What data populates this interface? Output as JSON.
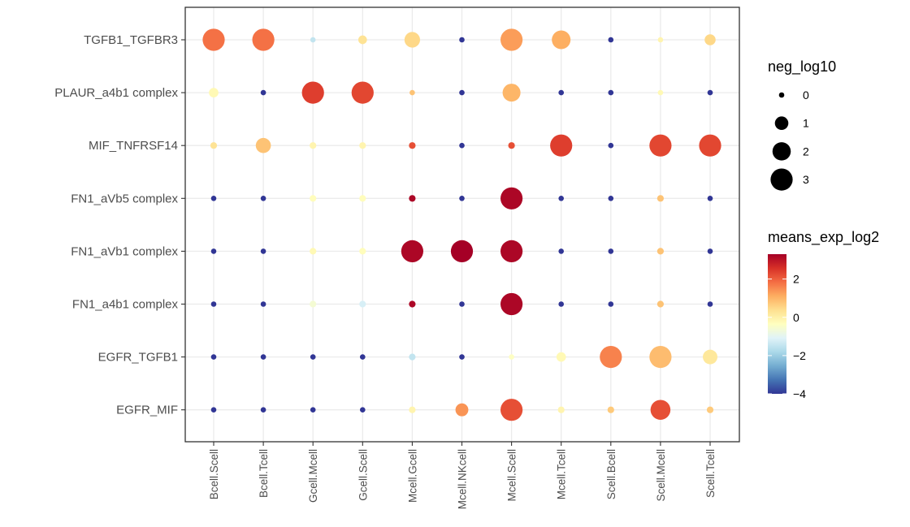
{
  "chart_data": {
    "type": "scatter",
    "title": "",
    "xlabel": "",
    "ylabel": "",
    "x_categories": [
      "Bcell.Scell",
      "Bcell.Tcell",
      "Gcell.Mcell",
      "Gcell.Scell",
      "Mcell.Gcell",
      "Mcell.NKcell",
      "Mcell.Scell",
      "Mcell.Tcell",
      "Scell.Bcell",
      "Scell.Mcell",
      "Scell.Tcell"
    ],
    "y_categories": [
      "TGFB1_TGFBR3",
      "PLAUR_a4b1 complex",
      "MIF_TNFRSF14",
      "FN1_aVb5 complex",
      "FN1_aVb1 complex",
      "FN1_a4b1 complex",
      "EGFR_TGFB1",
      "EGFR_MIF"
    ],
    "size_variable": "neg_log10",
    "color_variable": "means_exp_log2",
    "neg_log10": [
      [
        3,
        3,
        0,
        0.3,
        1.4,
        0,
        3,
        2.1,
        0,
        0,
        0.6
      ],
      [
        0.4,
        0,
        3,
        3,
        0,
        0,
        1.9,
        0,
        0,
        0,
        0
      ],
      [
        0.1,
        1.3,
        0.1,
        0.1,
        0.1,
        0,
        0.1,
        3,
        0,
        3,
        3
      ],
      [
        0,
        0,
        0.1,
        0.1,
        0.1,
        0,
        3,
        0,
        0,
        0.1,
        0
      ],
      [
        0,
        0,
        0.1,
        0.1,
        3,
        3,
        3,
        0,
        0,
        0.1,
        0
      ],
      [
        0,
        0,
        0.1,
        0.1,
        0.1,
        0,
        3,
        0,
        0,
        0.1,
        0
      ],
      [
        0,
        0,
        0,
        0,
        0.1,
        0,
        0,
        0.4,
        3,
        3,
        1.2
      ],
      [
        0,
        0,
        0,
        0,
        0.1,
        0.9,
        3,
        0.1,
        0.1,
        2.4,
        0.1
      ]
    ],
    "means_exp_log2": [
      [
        1.8,
        1.8,
        -1.5,
        0.3,
        0.5,
        -4,
        1.3,
        1.1,
        -4,
        -0.1,
        0.5
      ],
      [
        -0.2,
        -4,
        2.4,
        2.3,
        0.8,
        -4,
        1.0,
        -4,
        -4,
        -0.2,
        -4
      ],
      [
        0.3,
        0.8,
        -0.1,
        -0.1,
        2.2,
        -4,
        2.2,
        2.4,
        -4,
        2.3,
        2.3
      ],
      [
        -4,
        -4,
        -0.3,
        -0.3,
        3.2,
        -4,
        3.2,
        -4,
        -4,
        0.8,
        -4
      ],
      [
        -4,
        -4,
        -0.2,
        -0.3,
        3.2,
        3.3,
        3.2,
        -4,
        -4,
        0.8,
        -4
      ],
      [
        -4,
        -4,
        -0.6,
        -1.2,
        3.2,
        -4,
        3.2,
        -4,
        -4,
        0.8,
        -4
      ],
      [
        -4,
        -4,
        -4,
        -4,
        -1.5,
        -4,
        -0.4,
        -0.2,
        1.6,
        0.9,
        0.2
      ],
      [
        -4,
        -4,
        -4,
        -4,
        -0.1,
        1.4,
        2.2,
        -0.1,
        0.7,
        2.2,
        0.7
      ]
    ],
    "legend": {
      "size_title": "neg_log10",
      "size_breaks": [
        0,
        1,
        2,
        3
      ],
      "size_labels": [
        "0",
        "1",
        "2",
        "3"
      ],
      "color_title": "means_exp_log2",
      "color_range": [
        -4,
        3.3
      ],
      "color_breaks": [
        2,
        0,
        -2,
        -4
      ],
      "color_labels": [
        "2",
        "0",
        "−2",
        "−4"
      ],
      "placement": "right"
    },
    "palette": [
      "#313695",
      "#4575b4",
      "#74add1",
      "#abd9e9",
      "#e0f3f8",
      "#ffffbf",
      "#fee090",
      "#fdae61",
      "#f46d43",
      "#d73027",
      "#a50026"
    ],
    "grid": true
  }
}
